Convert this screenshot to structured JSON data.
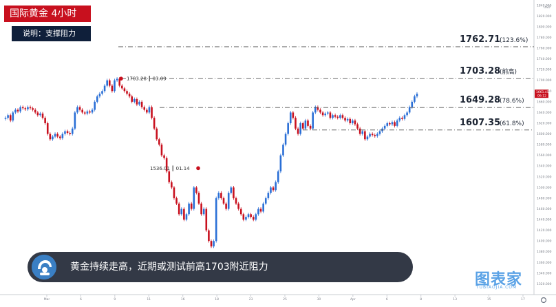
{
  "header": {
    "title": "国际黄金  4小时",
    "subtitle": "说明：支撑阻力"
  },
  "caption": {
    "text": "黄金持续走高，近期或测试前高1703附近阻力",
    "icon": "helmet-avatar-icon"
  },
  "logo": {
    "main": "图表家",
    "sub": "TUBIAOJIA.COM"
  },
  "toolbar": {
    "currency": "USD",
    "settings_icon": "gear-icon"
  },
  "colors": {
    "up": "#2a6fd6",
    "down": "#c8101e",
    "level_line": "#555555",
    "badge": "#c8101e",
    "sub_badge": "#0f1f3a"
  },
  "chart_data": {
    "type": "line",
    "title": "国际黄金  4小时",
    "ylim": [
      1300,
      1850
    ],
    "y_ticks": [
      1300,
      1320,
      1340,
      1360,
      1380,
      1400,
      1420,
      1440,
      1460,
      1480,
      1500,
      1520,
      1540,
      1560,
      1580,
      1600,
      1620,
      1640,
      1660,
      1680,
      1700,
      1720,
      1740,
      1760,
      1780,
      1800,
      1820,
      1840
    ],
    "x_ticks": [
      "Mar",
      "6",
      "9",
      "11",
      "16",
      "18",
      "23",
      "25",
      "30",
      "Apr",
      "6",
      "8",
      "13",
      "15",
      "17"
    ],
    "levels": [
      {
        "value_label": "1762.71",
        "note": "(123.6%)",
        "value": 1762.71
      },
      {
        "value_label": "1703.28",
        "note": "(前高)",
        "value": 1703.28
      },
      {
        "value_label": "1649.28",
        "note": "(78.6%)",
        "value": 1649.28
      },
      {
        "value_label": "1607.35",
        "note": "(61.8%)",
        "value": 1607.35
      }
    ],
    "annotations": [
      {
        "text": "1703.28  ┃ 03.09",
        "value": 1703.28
      },
      {
        "text": "1536.01  ┃ 01.14",
        "value": 1536.01
      }
    ],
    "price_tags": [
      "1661.451",
      "06:12"
    ],
    "series": [
      {
        "values": [
          1630,
          1635,
          1625,
          1640,
          1645,
          1642,
          1650,
          1648,
          1646,
          1650,
          1648,
          1645,
          1640,
          1635,
          1638,
          1630,
          1620,
          1600,
          1590,
          1595,
          1600,
          1595,
          1592,
          1600,
          1605,
          1602,
          1600,
          1610,
          1640,
          1650,
          1645,
          1640,
          1638,
          1642,
          1640,
          1645,
          1660,
          1670,
          1675,
          1680,
          1690,
          1700,
          1690,
          1680,
          1700,
          1703,
          1690,
          1685,
          1680,
          1675,
          1670,
          1660,
          1665,
          1655,
          1660,
          1650,
          1645,
          1640,
          1650,
          1630,
          1610,
          1590,
          1580,
          1560,
          1555,
          1530,
          1510,
          1500,
          1480,
          1470,
          1450,
          1460,
          1440,
          1450,
          1470,
          1460,
          1500,
          1490,
          1470,
          1450,
          1460,
          1420,
          1400,
          1390,
          1400,
          1480,
          1490,
          1480,
          1470,
          1460,
          1490,
          1500,
          1480,
          1470,
          1460,
          1450,
          1440,
          1445,
          1450,
          1445,
          1440,
          1450,
          1460,
          1455,
          1470,
          1480,
          1490,
          1500,
          1495,
          1510,
          1530,
          1560,
          1580,
          1600,
          1620,
          1640,
          1630,
          1610,
          1600,
          1620,
          1610,
          1625,
          1615,
          1610,
          1640,
          1650,
          1645,
          1640,
          1635,
          1638,
          1640,
          1630,
          1635,
          1632,
          1630,
          1635,
          1630,
          1625,
          1628,
          1620,
          1625,
          1618,
          1610,
          1600,
          1605,
          1590,
          1595,
          1600,
          1598,
          1596,
          1600,
          1605,
          1610,
          1615,
          1620,
          1618,
          1622,
          1615,
          1625,
          1630,
          1628,
          1635,
          1640,
          1650,
          1660,
          1670,
          1675
        ]
      }
    ]
  }
}
